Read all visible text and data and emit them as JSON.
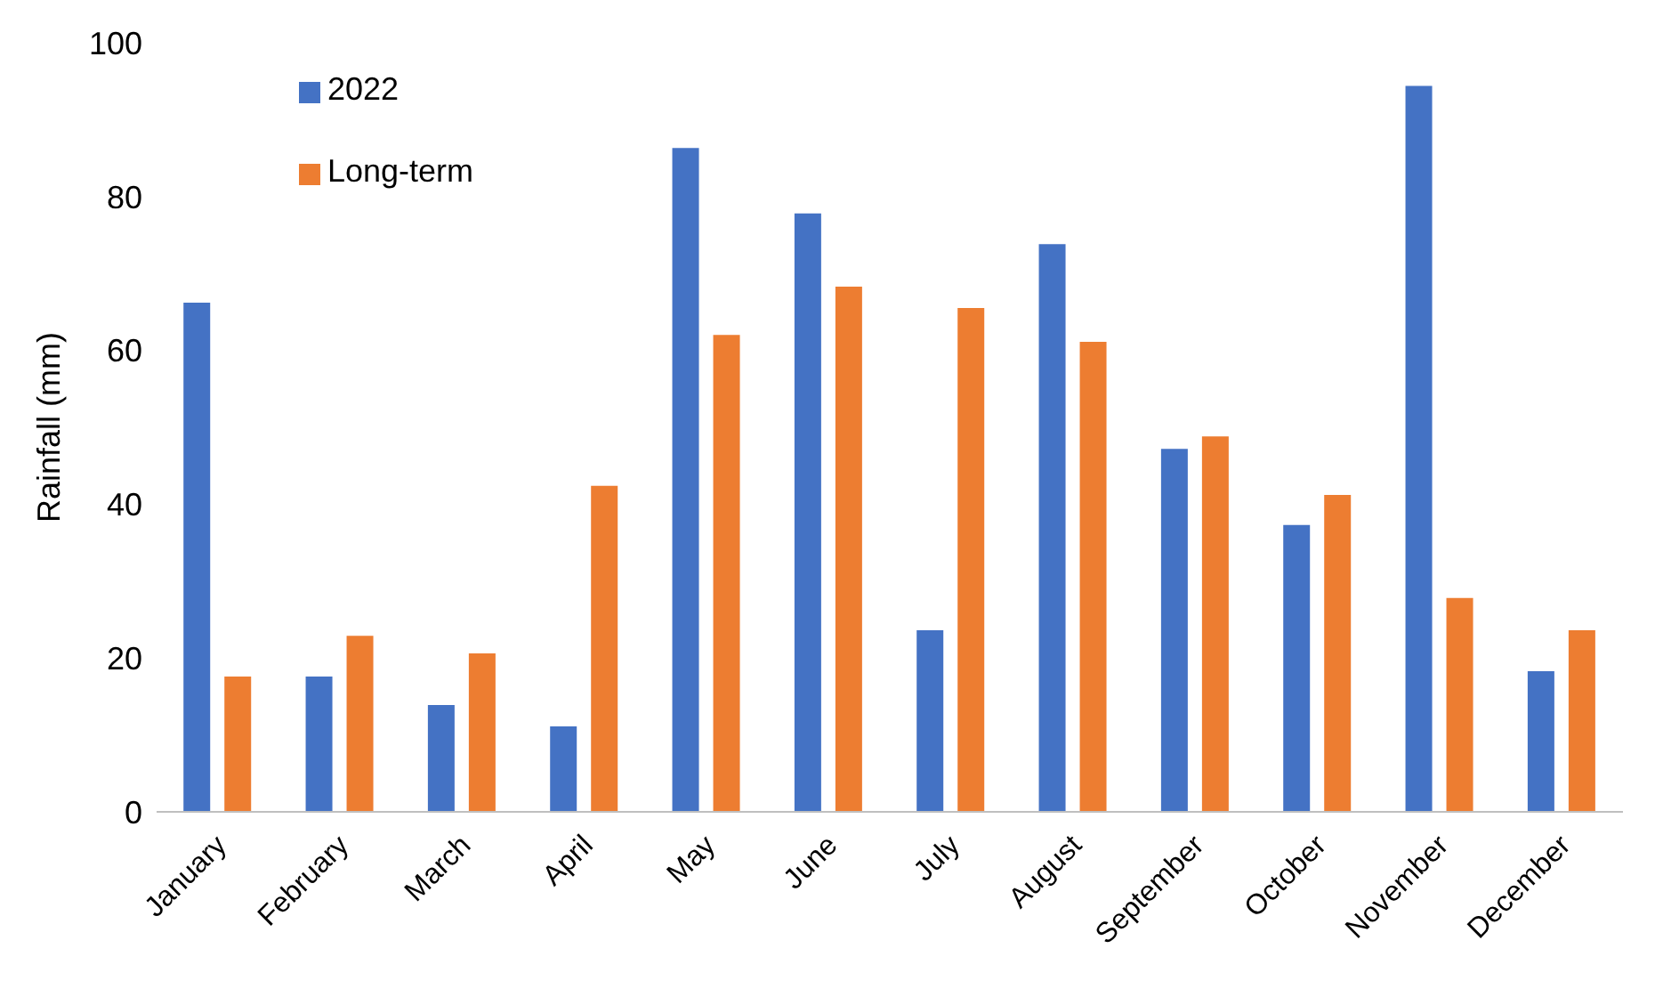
{
  "chart_data": {
    "type": "bar",
    "ylabel": "Rainfall (mm)",
    "categories": [
      "January",
      "February",
      "March",
      "April",
      "May",
      "June",
      "July",
      "August",
      "September",
      "October",
      "November",
      "December"
    ],
    "series": [
      {
        "name": "2022",
        "color": "#4472c4",
        "values": [
          66.2,
          17.6,
          13.9,
          11.1,
          86.3,
          77.8,
          23.6,
          73.8,
          47.2,
          37.3,
          94.4,
          18.3
        ]
      },
      {
        "name": "Long-term",
        "color": "#ed7d31",
        "values": [
          17.6,
          22.9,
          20.6,
          42.4,
          62.0,
          68.3,
          65.5,
          61.1,
          48.8,
          41.2,
          27.8,
          23.6
        ]
      }
    ],
    "ylim": [
      0,
      100
    ],
    "yticks": [
      0,
      20,
      40,
      60,
      80,
      100
    ],
    "grid": false,
    "legend": "top left"
  }
}
